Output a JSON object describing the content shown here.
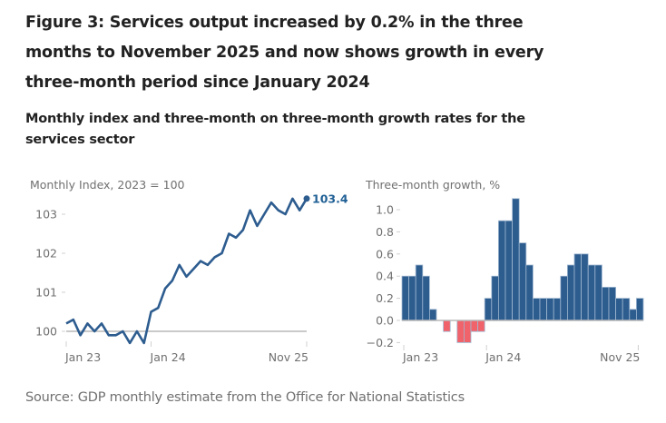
{
  "title": "Figure 3: Services output increased by 0.2% in the three months to November 2025 and now shows growth in every three-month period since January 2024",
  "subtitle": "Monthly index and three-month on three-month growth rates for the services sector",
  "source": "Source: GDP monthly estimate from the Office for National Statistics",
  "colors": {
    "line": "#2d5c8f",
    "bar_positive": "#2d5c8f",
    "bar_negative": "#f0636b",
    "bar_outline": "#9fb8d0",
    "zero_line": "#b8b8b8",
    "tick": "#d0d0d0"
  },
  "chart_data": [
    {
      "type": "line",
      "title": "Monthly Index, 2023 = 100",
      "ylabel": "Monthly Index, 2023 = 100",
      "xlabel": "",
      "ylim": [
        99.6,
        103.5
      ],
      "yticks": [
        100,
        101,
        102,
        103
      ],
      "ytick_labels": [
        "100",
        "101",
        "102",
        "103"
      ],
      "xtick_labels": [
        {
          "label": "Jan 23",
          "index": 0
        },
        {
          "label": "Jan 24",
          "index": 12
        },
        {
          "label": "Nov 25",
          "index": 34
        }
      ],
      "reference_line": 100,
      "end_label": "103.4",
      "grid": false,
      "x": [
        "Jan 23",
        "Feb 23",
        "Mar 23",
        "Apr 23",
        "May 23",
        "Jun 23",
        "Jul 23",
        "Aug 23",
        "Sep 23",
        "Oct 23",
        "Nov 23",
        "Dec 23",
        "Jan 24",
        "Feb 24",
        "Mar 24",
        "Apr 24",
        "May 24",
        "Jun 24",
        "Jul 24",
        "Aug 24",
        "Sep 24",
        "Oct 24",
        "Nov 24",
        "Dec 24",
        "Jan 25",
        "Feb 25",
        "Mar 25",
        "Apr 25",
        "May 25",
        "Jun 25",
        "Jul 25",
        "Aug 25",
        "Sep 25",
        "Oct 25",
        "Nov 25"
      ],
      "values": [
        100.2,
        100.3,
        99.9,
        100.2,
        100.0,
        100.2,
        99.9,
        99.9,
        100.0,
        99.7,
        100.0,
        99.7,
        100.5,
        100.6,
        101.1,
        101.3,
        101.7,
        101.4,
        101.6,
        101.8,
        101.7,
        101.9,
        102.0,
        102.5,
        102.4,
        102.6,
        103.1,
        102.7,
        103.0,
        103.3,
        103.1,
        103.0,
        103.4,
        103.1,
        103.4
      ]
    },
    {
      "type": "bar",
      "title": "Three-month growth, %",
      "ylabel": "Three-month growth, %",
      "xlabel": "",
      "ylim": [
        -0.2,
        1.1
      ],
      "yticks": [
        -0.2,
        0.0,
        0.2,
        0.4,
        0.6,
        0.8,
        1.0
      ],
      "ytick_labels": [
        "−0.2",
        "0.0",
        "0.2",
        "0.4",
        "0.6",
        "0.8",
        "1.0"
      ],
      "xtick_labels": [
        {
          "label": "Jan 23",
          "index": 0
        },
        {
          "label": "Jan 24",
          "index": 12
        },
        {
          "label": "Nov 25",
          "index": 34
        }
      ],
      "grid": false,
      "categories": [
        "Jan 23",
        "Feb 23",
        "Mar 23",
        "Apr 23",
        "May 23",
        "Jun 23",
        "Jul 23",
        "Aug 23",
        "Sep 23",
        "Oct 23",
        "Nov 23",
        "Dec 23",
        "Jan 24",
        "Feb 24",
        "Mar 24",
        "Apr 24",
        "May 24",
        "Jun 24",
        "Jul 24",
        "Aug 24",
        "Sep 24",
        "Oct 24",
        "Nov 24",
        "Dec 24",
        "Jan 25",
        "Feb 25",
        "Mar 25",
        "Apr 25",
        "May 25",
        "Jun 25",
        "Jul 25",
        "Aug 25",
        "Sep 25",
        "Oct 25",
        "Nov 25"
      ],
      "values": [
        0.4,
        0.4,
        0.5,
        0.4,
        0.1,
        0.0,
        -0.1,
        0.0,
        -0.2,
        -0.2,
        -0.1,
        -0.1,
        0.2,
        0.4,
        0.9,
        0.9,
        1.1,
        0.7,
        0.5,
        0.2,
        0.2,
        0.2,
        0.2,
        0.4,
        0.5,
        0.6,
        0.6,
        0.5,
        0.5,
        0.3,
        0.3,
        0.2,
        0.2,
        0.1,
        0.2
      ]
    }
  ]
}
